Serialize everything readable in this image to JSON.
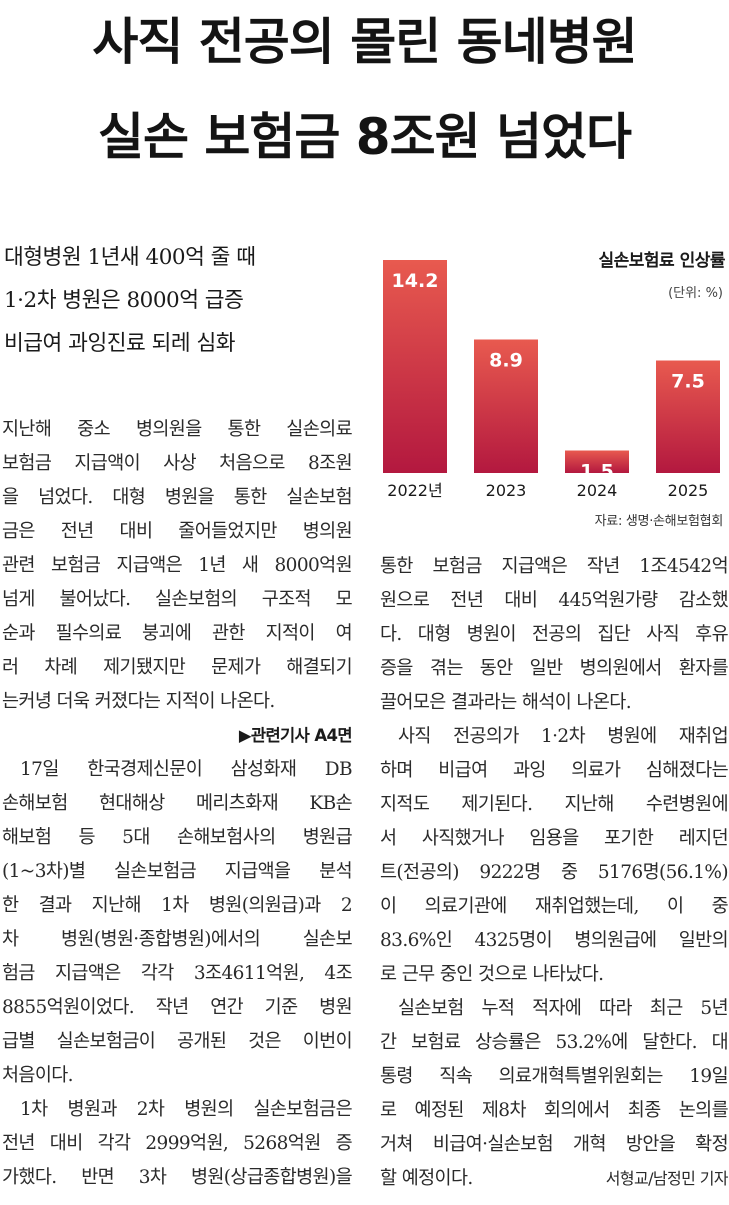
{
  "headline": {
    "line1": "사직 전공의 몰린 동네병원",
    "line2": "실손 보험금 8조원 넘었다"
  },
  "subheadline": [
    "대형병원 1년새 400억 줄 때",
    "1·2차 병원은 8000억 급증",
    "비급여 과잉진료 되레 심화"
  ],
  "chart": {
    "title": "실손보험료 인상률",
    "unit": "(단위: %)",
    "source": "자료: 생명·손해보험협회",
    "colors": {
      "top": "#e85a4f",
      "bottom": "#b3183f"
    }
  },
  "chart_data": {
    "type": "bar",
    "categories": [
      "2022년",
      "2023",
      "2024",
      "2025"
    ],
    "values": [
      14.2,
      8.9,
      1.5,
      7.5
    ],
    "value_labels": [
      "14.2",
      "8.9",
      "1.5",
      "7.5"
    ],
    "title": "실손보험료 인상률",
    "unit": "(단위: %)",
    "ylim": [
      0,
      14.2
    ],
    "grid": false
  },
  "article": {
    "left_lines": [
      "지난해 중소 병의원을 통한 실손의료",
      "보험금 지급액이 사상 처음으로 8조원",
      "을 넘었다. 대형 병원을 통한 실손보험",
      "금은 전년 대비 줄어들었지만 병의원",
      "관련 보험금 지급액은 1년 새 8000억원",
      "넘게 불어났다. 실손보험의 구조적 모",
      "순과 필수의료 붕괴에 관한 지적이 여",
      "러 차례 제기됐지만 문제가 해결되기",
      "는커녕 더욱 커졌다는 지적이 나온다."
    ],
    "related": "▶관련기사 A4면",
    "left_lines2": [
      "17일 한국경제신문이 삼성화재 DB",
      "손해보험 현대해상 메리츠화재 KB손",
      "해보험 등 5대 손해보험사의 병원급",
      "(1~3차)별 실손보험금 지급액을 분석",
      "한 결과 지난해 1차 병원(의원급)과 2",
      "차 병원(병원·종합병원)에서의 실손보",
      "험금 지급액은 각각 3조4611억원, 4조",
      "8855억원이었다. 작년 연간 기준 병원",
      "급별 실손보험금이 공개된 것은 이번이",
      "처음이다."
    ],
    "left_lines3": [
      "1차 병원과 2차 병원의 실손보험금은",
      "전년 대비 각각 2999억원, 5268억원 증",
      "가했다. 반면 3차 병원(상급종합병원)을"
    ],
    "right_lines": [
      "통한 보험금 지급액은 작년 1조4542억",
      "원으로 전년 대비 445억원가량 감소했",
      "다. 대형 병원이 전공의 집단 사직 후유",
      "증을 겪는 동안 일반 병의원에서 환자를",
      "끌어모은 결과라는 해석이 나온다."
    ],
    "right_lines2": [
      "사직 전공의가 1·2차 병원에 재취업",
      "하며 비급여 과잉 의료가 심해졌다는",
      "지적도 제기된다. 지난해 수련병원에",
      "서 사직했거나 임용을 포기한 레지던",
      "트(전공의) 9222명 중 5176명(56.1%)",
      "이 의료기관에 재취업했는데, 이 중",
      "83.6%인 4325명이 병의원급에 일반의",
      "로 근무 중인 것으로 나타났다."
    ],
    "right_lines3": [
      "실손보험 누적 적자에 따라 최근 5년",
      "간 보험료 상승률은 53.2%에 달한다. 대",
      "통령 직속 의료개혁특별위원회는 19일",
      "로 예정된 제8차 회의에서 최종 논의를",
      "거쳐 비급여·실손보험 개혁 방안을 확정"
    ],
    "last_line": "할 예정이다.",
    "byline": "서형교/남정민 기자"
  }
}
